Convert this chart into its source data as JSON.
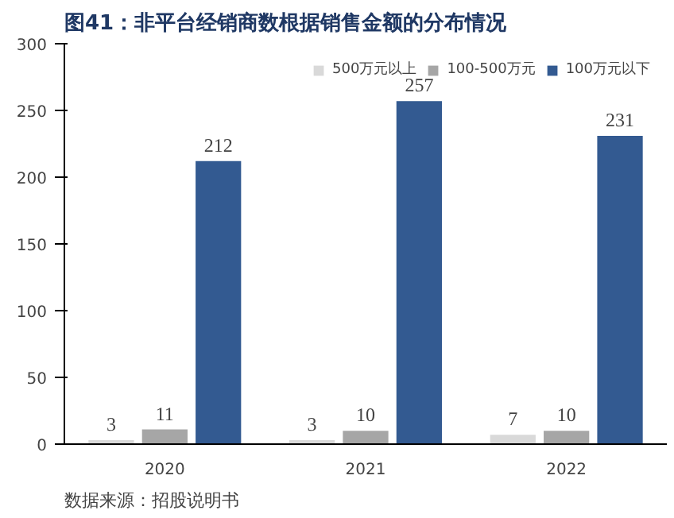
{
  "chart_data": {
    "type": "bar",
    "title": "图41：非平台经销商数根据销售金额的分布情况",
    "categories": [
      "2020",
      "2021",
      "2022"
    ],
    "series": [
      {
        "name": "500万元以上",
        "color": "#d9d9d9",
        "values": [
          3,
          3,
          7
        ]
      },
      {
        "name": "100-500万元",
        "color": "#a6a6a6",
        "values": [
          11,
          10,
          10
        ]
      },
      {
        "name": "100万元以下",
        "color": "#335a91",
        "values": [
          212,
          257,
          231
        ]
      }
    ],
    "ylim": [
      0,
      300
    ],
    "yticks": [
      0,
      50,
      100,
      150,
      200,
      250,
      300
    ],
    "grid": false,
    "legend": "top right",
    "data_labels": true,
    "annotations": [
      "数据来源：招股说明书"
    ]
  }
}
